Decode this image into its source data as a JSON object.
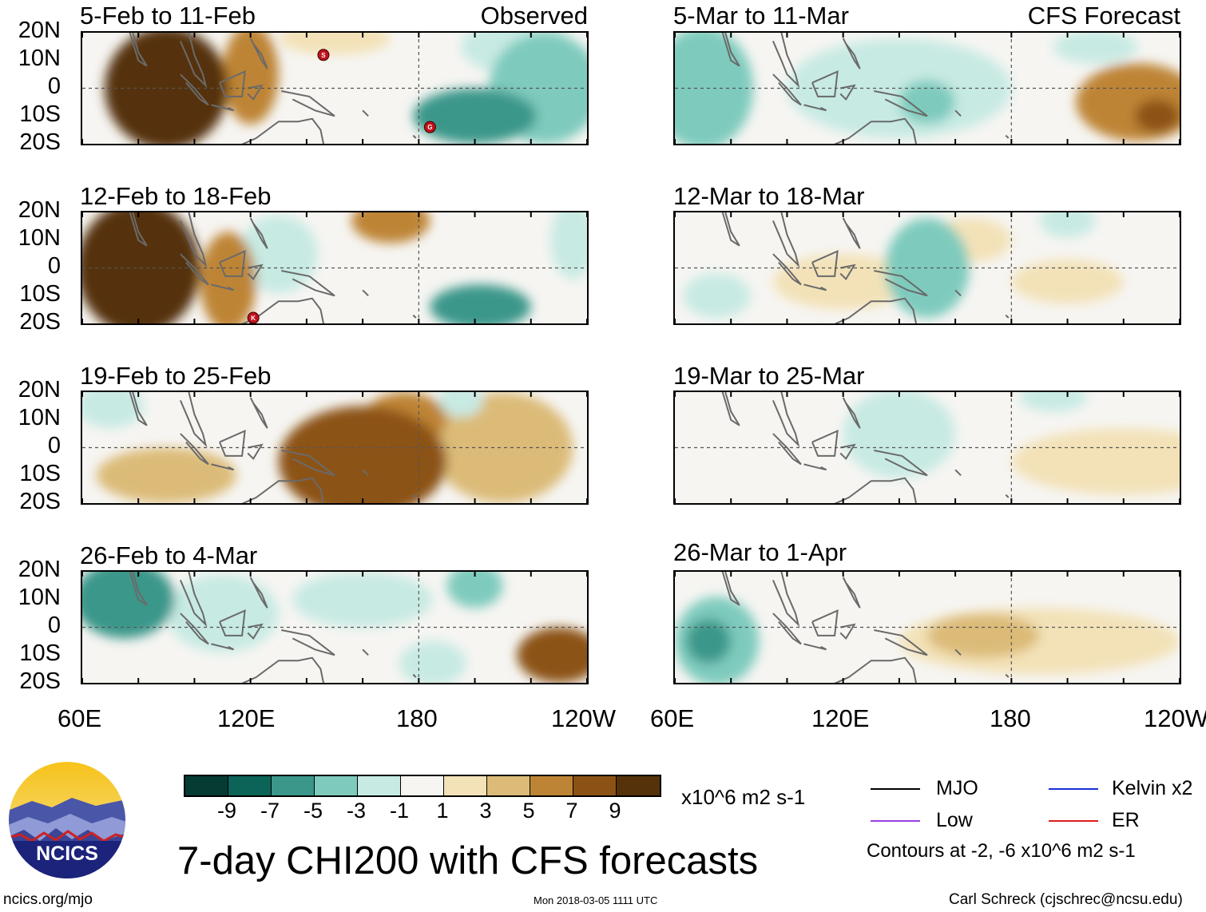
{
  "header": {
    "observed_label": "Observed",
    "forecast_label": "CFS Forecast"
  },
  "lat_labels": [
    "20N",
    "10N",
    "0",
    "10S",
    "20S"
  ],
  "lon_labels": [
    "60E",
    "120E",
    "180",
    "120W"
  ],
  "panels_observed": [
    {
      "title": "5-Feb to 11-Feb",
      "storms": [
        "S",
        "G"
      ]
    },
    {
      "title": "12-Feb to 18-Feb",
      "storms": [
        "K"
      ]
    },
    {
      "title": "19-Feb to 25-Feb",
      "storms": []
    },
    {
      "title": "26-Feb to 4-Mar",
      "storms": []
    }
  ],
  "panels_forecast": [
    {
      "title": "5-Mar to 11-Mar"
    },
    {
      "title": "12-Mar to 18-Mar"
    },
    {
      "title": "19-Mar to 25-Mar"
    },
    {
      "title": "26-Mar to 1-Apr"
    }
  ],
  "colorbar": {
    "colors": [
      "#053b33",
      "#0c6458",
      "#3a978a",
      "#7ecbbd",
      "#c7eae3",
      "#f6f5f2",
      "#f3e2b8",
      "#dcbb78",
      "#be8435",
      "#8c5215",
      "#553209"
    ],
    "labels": [
      "-9",
      "-7",
      "-5",
      "-3",
      "-1",
      "1",
      "3",
      "5",
      "7",
      "9"
    ],
    "units": "x10^6 m2 s-1"
  },
  "legend": {
    "items": [
      {
        "name": "MJO",
        "color": "#000000"
      },
      {
        "name": "Kelvin x2",
        "color": "#1a2fd6"
      },
      {
        "name": "Low",
        "color": "#9b3fe0"
      },
      {
        "name": "ER",
        "color": "#e01b1b"
      }
    ],
    "contours_note": "Contours at -2, -6 x10^6 m2 s-1"
  },
  "logo": {
    "text": "NCICS"
  },
  "main_title": "7-day CHI200 with CFS forecasts",
  "footer": {
    "website": "ncics.org/mjo",
    "timestamp": "Mon 2018-03-05 1111 UTC",
    "author": "Carl Schreck (cjschrec@ncsu.edu)"
  },
  "chart_data": {
    "type": "heatmap",
    "title": "7-day CHI200 with CFS forecasts",
    "variable": "CHI200 anomaly (x10^6 m2 s-1)",
    "x_range": [
      "60E",
      "120W"
    ],
    "y_range": [
      "20S",
      "20N"
    ],
    "color_levels": [
      -9,
      -7,
      -5,
      -3,
      -1,
      1,
      3,
      5,
      7,
      9
    ],
    "panels": [
      {
        "period": "5-Feb to 11-Feb",
        "source": "Observed",
        "features": [
          {
            "lon": 90,
            "lat": 0,
            "value": 9,
            "rx": 22,
            "ry": 22
          },
          {
            "lon": 120,
            "lat": 5,
            "value": 5,
            "rx": 10,
            "ry": 18
          },
          {
            "lon": 200,
            "lat": -10,
            "value": -7,
            "rx": 22,
            "ry": 10
          },
          {
            "lon": 225,
            "lat": 0,
            "value": -5,
            "rx": 20,
            "ry": 20
          },
          {
            "lon": 215,
            "lat": 15,
            "value": -3,
            "rx": 20,
            "ry": 10
          },
          {
            "lon": 150,
            "lat": 18,
            "value": 1,
            "rx": 20,
            "ry": 6
          }
        ]
      },
      {
        "period": "12-Feb to 18-Feb",
        "source": "Observed",
        "features": [
          {
            "lon": 80,
            "lat": 0,
            "value": 9,
            "rx": 22,
            "ry": 24
          },
          {
            "lon": 112,
            "lat": -5,
            "value": 5,
            "rx": 10,
            "ry": 18
          },
          {
            "lon": 130,
            "lat": 5,
            "value": -3,
            "rx": 14,
            "ry": 14
          },
          {
            "lon": 170,
            "lat": 17,
            "value": 5,
            "rx": 14,
            "ry": 8
          },
          {
            "lon": 202,
            "lat": -14,
            "value": -7,
            "rx": 18,
            "ry": 8
          },
          {
            "lon": 235,
            "lat": 10,
            "value": -3,
            "rx": 8,
            "ry": 14
          }
        ]
      },
      {
        "period": "19-Feb to 25-Feb",
        "source": "Observed",
        "features": [
          {
            "lon": 160,
            "lat": -5,
            "value": 7,
            "rx": 30,
            "ry": 20
          },
          {
            "lon": 175,
            "lat": 10,
            "value": 5,
            "rx": 15,
            "ry": 10
          },
          {
            "lon": 90,
            "lat": -10,
            "value": 3,
            "rx": 25,
            "ry": 10
          },
          {
            "lon": 210,
            "lat": 0,
            "value": 3,
            "rx": 25,
            "ry": 20
          },
          {
            "lon": 70,
            "lat": 15,
            "value": -3,
            "rx": 12,
            "ry": 8
          },
          {
            "lon": 195,
            "lat": 17,
            "value": -3,
            "rx": 8,
            "ry": 6
          }
        ]
      },
      {
        "period": "26-Feb to 4-Mar",
        "source": "Observed",
        "features": [
          {
            "lon": 75,
            "lat": 10,
            "value": -7,
            "rx": 18,
            "ry": 14
          },
          {
            "lon": 110,
            "lat": 5,
            "value": -3,
            "rx": 20,
            "ry": 14
          },
          {
            "lon": 160,
            "lat": 10,
            "value": -3,
            "rx": 25,
            "ry": 10
          },
          {
            "lon": 200,
            "lat": 15,
            "value": -5,
            "rx": 10,
            "ry": 8
          },
          {
            "lon": 230,
            "lat": -10,
            "value": 7,
            "rx": 15,
            "ry": 10
          },
          {
            "lon": 185,
            "lat": -13,
            "value": -3,
            "rx": 12,
            "ry": 8
          }
        ]
      },
      {
        "period": "5-Mar to 11-Mar",
        "source": "CFS Forecast",
        "features": [
          {
            "lon": 70,
            "lat": 0,
            "value": -5,
            "rx": 18,
            "ry": 22
          },
          {
            "lon": 140,
            "lat": 0,
            "value": -3,
            "rx": 40,
            "ry": 18
          },
          {
            "lon": 150,
            "lat": -5,
            "value": -5,
            "rx": 10,
            "ry": 8
          },
          {
            "lon": 210,
            "lat": 15,
            "value": -3,
            "rx": 15,
            "ry": 6
          },
          {
            "lon": 225,
            "lat": -5,
            "value": 5,
            "rx": 22,
            "ry": 14
          },
          {
            "lon": 232,
            "lat": -10,
            "value": 7,
            "rx": 8,
            "ry": 6
          }
        ]
      },
      {
        "period": "12-Mar to 18-Mar",
        "source": "CFS Forecast",
        "features": [
          {
            "lon": 150,
            "lat": 0,
            "value": -5,
            "rx": 15,
            "ry": 18
          },
          {
            "lon": 200,
            "lat": 17,
            "value": -3,
            "rx": 10,
            "ry": 6
          },
          {
            "lon": 75,
            "lat": -10,
            "value": -3,
            "rx": 12,
            "ry": 8
          },
          {
            "lon": 120,
            "lat": -5,
            "value": 1,
            "rx": 25,
            "ry": 10
          },
          {
            "lon": 165,
            "lat": 10,
            "value": 1,
            "rx": 15,
            "ry": 8
          },
          {
            "lon": 200,
            "lat": -5,
            "value": 1,
            "rx": 20,
            "ry": 8
          }
        ]
      },
      {
        "period": "19-Mar to 25-Mar",
        "source": "CFS Forecast",
        "features": [
          {
            "lon": 140,
            "lat": 5,
            "value": -3,
            "rx": 20,
            "ry": 16
          },
          {
            "lon": 145,
            "lat": 8,
            "value": -3,
            "rx": 8,
            "ry": 5
          },
          {
            "lon": 195,
            "lat": 18,
            "value": -3,
            "rx": 12,
            "ry": 5
          },
          {
            "lon": 80,
            "lat": 5,
            "value": -1,
            "rx": 20,
            "ry": 15
          },
          {
            "lon": 220,
            "lat": -5,
            "value": 1,
            "rx": 40,
            "ry": 12
          }
        ]
      },
      {
        "period": "26-Mar to 1-Apr",
        "source": "CFS Forecast",
        "features": [
          {
            "lon": 75,
            "lat": -5,
            "value": -5,
            "rx": 15,
            "ry": 16
          },
          {
            "lon": 72,
            "lat": -5,
            "value": -7,
            "rx": 8,
            "ry": 8
          },
          {
            "lon": 170,
            "lat": -3,
            "value": 3,
            "rx": 20,
            "ry": 8
          },
          {
            "lon": 190,
            "lat": -5,
            "value": 1,
            "rx": 50,
            "ry": 12
          },
          {
            "lon": 200,
            "lat": 17,
            "value": -1,
            "rx": 15,
            "ry": 5
          }
        ]
      }
    ]
  }
}
